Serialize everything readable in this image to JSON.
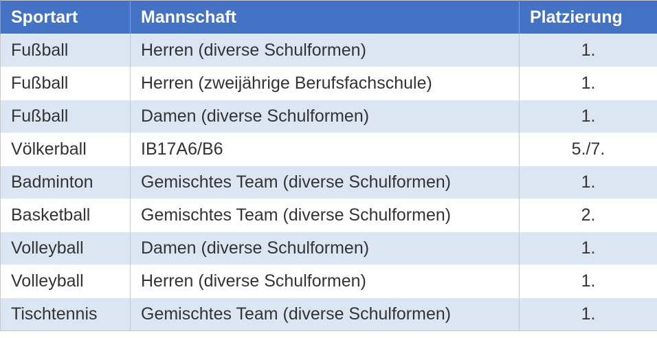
{
  "colors": {
    "header_bg": "#4472C4",
    "stripe": "#DCE6F2",
    "text": "#333333"
  },
  "headers": [
    "Sportart",
    "Mannschaft",
    "Platzierung"
  ],
  "rows": [
    [
      "Fußball",
      "Herren (diverse Schulformen)",
      "1."
    ],
    [
      "Fußball",
      "Herren (zweijährige Berufsfachschule)",
      "1."
    ],
    [
      "Fußball",
      "Damen (diverse Schulformen)",
      "1."
    ],
    [
      "Völkerball",
      "IB17A6/B6",
      "5./7."
    ],
    [
      "Badminton",
      "Gemischtes Team (diverse Schulformen)",
      "1."
    ],
    [
      "Basketball",
      "Gemischtes Team (diverse Schulformen)",
      "2."
    ],
    [
      "Volleyball",
      "Damen (diverse Schulformen)",
      "1."
    ],
    [
      "Volleyball",
      "Herren (diverse Schulformen)",
      "1."
    ],
    [
      "Tischtennis",
      "Gemischtes Team (diverse Schulformen)",
      "1."
    ]
  ]
}
